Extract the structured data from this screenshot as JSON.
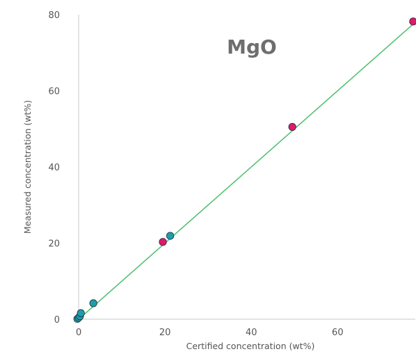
{
  "chart_data": {
    "type": "scatter",
    "title": "MgO",
    "xlabel": "Certified concentration (wt%)",
    "ylabel": "Measured concentration (wt%)",
    "xlim": [
      -0.5,
      78
    ],
    "ylim": [
      0,
      80
    ],
    "xticks": [
      0,
      20,
      40,
      60
    ],
    "yticks": [
      0,
      20,
      40,
      60,
      80
    ],
    "xtick_labels": [
      "0",
      "20",
      "40",
      "60"
    ],
    "ytick_labels": [
      "0",
      "20",
      "40",
      "60",
      "80"
    ],
    "grid": false,
    "series": [
      {
        "color": "#1a9fad",
        "points": [
          [
            -0.3,
            0.1
          ],
          [
            0.0,
            0.4
          ],
          [
            0.3,
            0.8
          ],
          [
            0.5,
            1.6
          ],
          [
            3.4,
            4.2
          ],
          [
            21.2,
            21.9
          ]
        ]
      },
      {
        "color": "#e0196b",
        "points": [
          [
            19.5,
            20.3
          ],
          [
            49.5,
            50.5
          ],
          [
            77.5,
            78.2
          ]
        ]
      }
    ],
    "fit_line": {
      "color": "#4bbf6b",
      "x": [
        0,
        78
      ],
      "y": [
        0,
        78
      ]
    }
  }
}
